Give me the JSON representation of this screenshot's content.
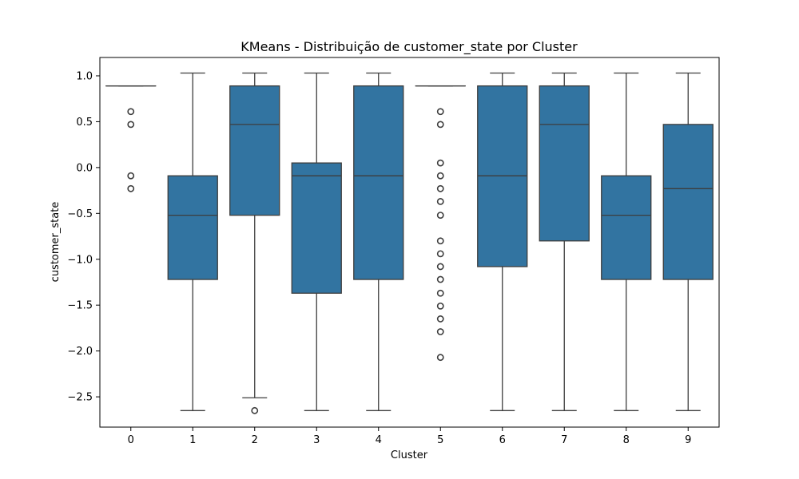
{
  "chart_data": {
    "type": "box",
    "title": "KMeans - Distribuição de customer_state por Cluster",
    "xlabel": "Cluster",
    "ylabel": "customer_state",
    "categories": [
      "0",
      "1",
      "2",
      "3",
      "4",
      "5",
      "6",
      "7",
      "8",
      "9"
    ],
    "ylim": [
      -2.83,
      1.2
    ],
    "yticks": [
      1.0,
      0.5,
      0.0,
      -0.5,
      -1.0,
      -1.5,
      -2.0,
      -2.5
    ],
    "ytick_labels": [
      "1.0",
      "0.5",
      "0.0",
      "−0.5",
      "−1.0",
      "−1.5",
      "−2.0",
      "−2.5"
    ],
    "box_color": "#3274a1",
    "line_color": "#3d3d3d",
    "boxes": [
      {
        "cluster": "0",
        "whisker_low": 0.89,
        "q1": 0.89,
        "median": 0.89,
        "q3": 0.89,
        "whisker_high": 0.89,
        "outliers": [
          0.61,
          0.47,
          -0.09,
          -0.23
        ]
      },
      {
        "cluster": "1",
        "whisker_low": -2.65,
        "q1": -1.22,
        "median": -0.52,
        "q3": -0.09,
        "whisker_high": 1.03,
        "outliers": []
      },
      {
        "cluster": "2",
        "whisker_low": -2.51,
        "q1": -0.52,
        "median": 0.47,
        "q3": 0.89,
        "whisker_high": 1.03,
        "outliers": [
          -2.65
        ]
      },
      {
        "cluster": "3",
        "whisker_low": -2.65,
        "q1": -1.37,
        "median": -0.09,
        "q3": 0.05,
        "whisker_high": 1.03,
        "outliers": []
      },
      {
        "cluster": "4",
        "whisker_low": -2.65,
        "q1": -1.22,
        "median": -0.09,
        "q3": 0.89,
        "whisker_high": 1.03,
        "outliers": []
      },
      {
        "cluster": "5",
        "whisker_low": 0.89,
        "q1": 0.89,
        "median": 0.89,
        "q3": 0.89,
        "whisker_high": 0.89,
        "outliers": [
          0.61,
          0.47,
          0.05,
          -0.09,
          -0.23,
          -0.37,
          -0.52,
          -0.8,
          -0.94,
          -1.08,
          -1.22,
          -1.37,
          -1.51,
          -1.65,
          -1.79,
          -2.07
        ]
      },
      {
        "cluster": "6",
        "whisker_low": -2.65,
        "q1": -1.08,
        "median": -0.09,
        "q3": 0.89,
        "whisker_high": 1.03,
        "outliers": []
      },
      {
        "cluster": "7",
        "whisker_low": -2.65,
        "q1": -0.8,
        "median": 0.47,
        "q3": 0.89,
        "whisker_high": 1.03,
        "outliers": []
      },
      {
        "cluster": "8",
        "whisker_low": -2.65,
        "q1": -1.22,
        "median": -0.52,
        "q3": -0.09,
        "whisker_high": 1.03,
        "outliers": []
      },
      {
        "cluster": "9",
        "whisker_low": -2.65,
        "q1": -1.22,
        "median": -0.23,
        "q3": 0.47,
        "whisker_high": 1.03,
        "outliers": []
      }
    ],
    "grid": false,
    "legend": "none"
  }
}
